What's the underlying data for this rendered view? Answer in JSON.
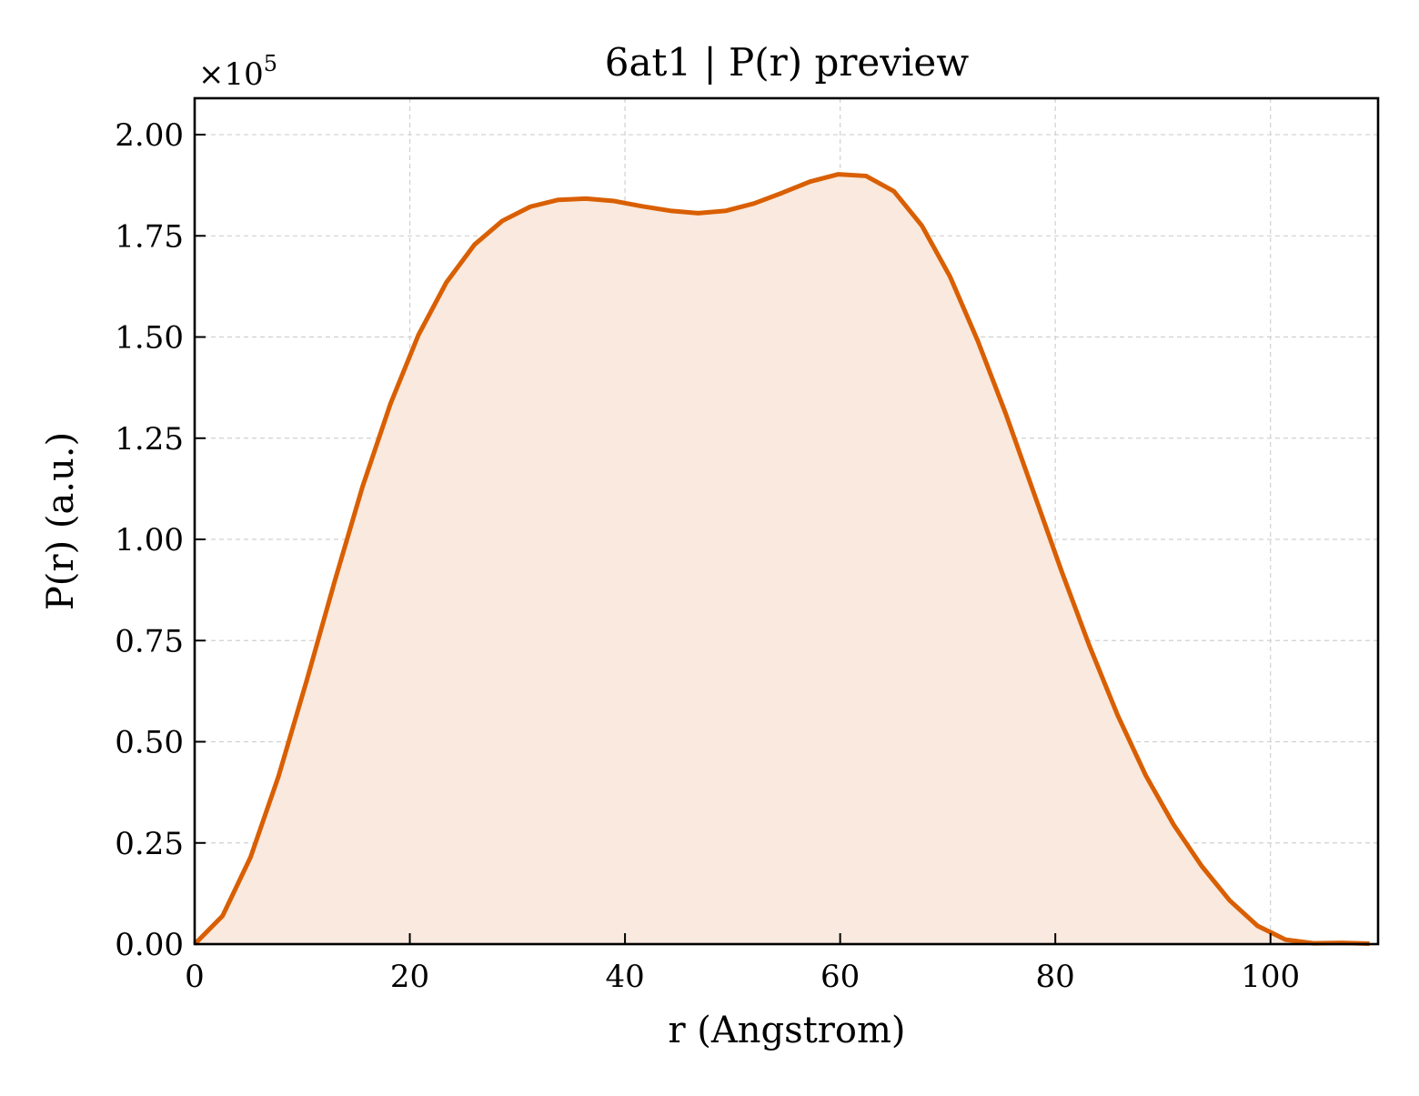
{
  "chart_data": {
    "type": "area",
    "title": "6at1 | P(r) preview",
    "xlabel": "r (Angstrom)",
    "ylabel": "P(r) (a.u.)",
    "y_offset_label": "×10",
    "y_offset_exponent": "5",
    "y_scale": 100000,
    "xlim": [
      0,
      110
    ],
    "ylim": [
      0,
      209000
    ],
    "x_ticks": [
      0,
      20,
      40,
      60,
      80,
      100
    ],
    "x_tick_labels": [
      "0",
      "20",
      "40",
      "60",
      "80",
      "100"
    ],
    "y_ticks": [
      0,
      25000,
      50000,
      75000,
      100000,
      125000,
      150000,
      175000,
      200000
    ],
    "y_tick_labels": [
      "0.00",
      "0.25",
      "0.50",
      "0.75",
      "1.00",
      "1.25",
      "1.50",
      "1.75",
      "2.00"
    ],
    "grid": true,
    "line_color": "#d95f02",
    "fill_color": "#f9e9de",
    "series": [
      {
        "x": [
          0,
          2.6,
          5.2,
          7.8,
          10.4,
          13.0,
          15.6,
          18.2,
          20.8,
          23.4,
          26.0,
          28.6,
          31.2,
          33.8,
          36.4,
          39.0,
          41.6,
          44.2,
          46.8,
          49.4,
          52.0,
          54.6,
          57.2,
          59.8,
          62.4,
          65.0,
          67.6,
          70.2,
          72.8,
          75.4,
          78.0,
          80.6,
          83.2,
          85.8,
          88.4,
          91.0,
          93.6,
          96.2,
          98.8,
          101.4,
          104.0,
          106.6,
          109.2
        ],
        "y": [
          0,
          7000,
          21500,
          41500,
          65000,
          89500,
          113000,
          133500,
          150500,
          163500,
          172800,
          178700,
          182200,
          183900,
          184200,
          183600,
          182300,
          181200,
          180600,
          181200,
          183000,
          185600,
          188400,
          190200,
          189800,
          186000,
          177500,
          165000,
          149000,
          131000,
          111500,
          92000,
          73500,
          56500,
          41700,
          29500,
          19300,
          10800,
          4500,
          1100,
          200,
          300,
          100
        ]
      }
    ]
  }
}
